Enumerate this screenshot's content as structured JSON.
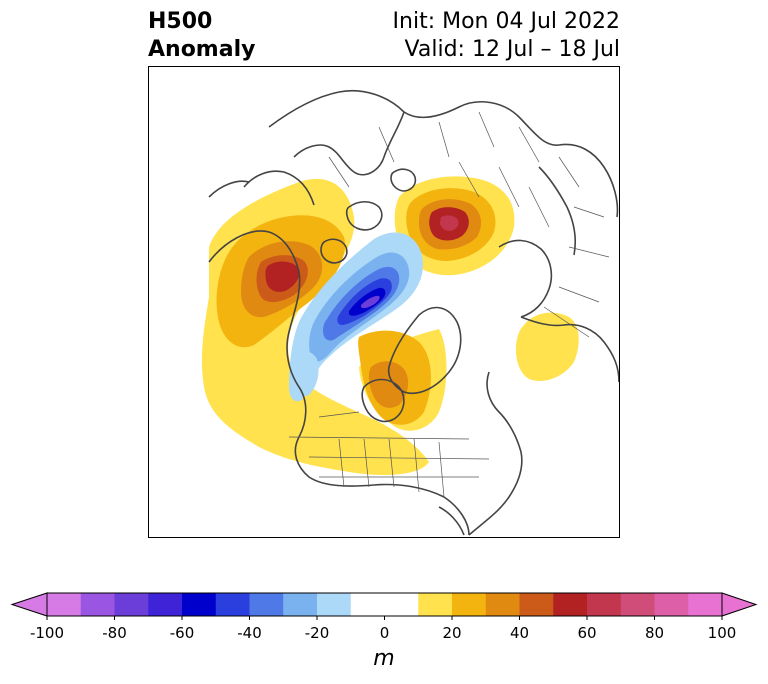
{
  "title": {
    "left_line1": "H500",
    "left_line2": "Anomaly",
    "right_line1": "Init: Mon 04 Jul 2022",
    "right_line2": "Valid: 12 Jul – 18 Jul"
  },
  "colorbar": {
    "unit": "m",
    "min": -100,
    "max": 100,
    "step": 10,
    "ticks": [
      "-100",
      "-80",
      "-60",
      "-40",
      "-20",
      "0",
      "20",
      "40",
      "60",
      "80",
      "100"
    ],
    "colors": [
      "#d67ae6",
      "#9a55e2",
      "#6c3ed9",
      "#3f23d6",
      "#0000cc",
      "#2a3fdd",
      "#4f79e6",
      "#7ab2f0",
      "#acd9f7",
      "#ffffff",
      "#ffffff",
      "#ffe24d",
      "#f3b40f",
      "#e08a12",
      "#cc5a18",
      "#b22222",
      "#c2374d",
      "#d04c79",
      "#dc5fa8",
      "#e872d2"
    ]
  },
  "map": {
    "projection": "north-polar-stereographic",
    "features": [
      "coastlines",
      "country-borders",
      "us-state-borders"
    ]
  }
}
